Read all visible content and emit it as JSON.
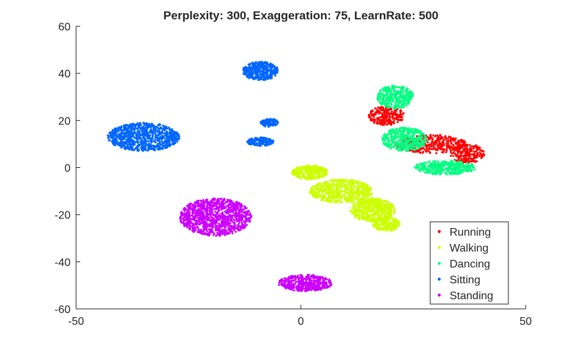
{
  "chart_data": {
    "type": "scatter",
    "title": "Perplexity: 300, Exaggeration: 75, LearnRate: 500",
    "xlabel": "",
    "ylabel": "",
    "xlim": [
      -50,
      50
    ],
    "ylim": [
      -60,
      60
    ],
    "xticks": [
      -50,
      0,
      50
    ],
    "yticks": [
      60,
      40,
      20,
      0,
      -20,
      -40,
      -60
    ],
    "grid": false,
    "legend_position": "bottom-right",
    "series": [
      {
        "name": "Running",
        "color": "#ff0000",
        "clusters": [
          {
            "cx": 19,
            "cy": 22,
            "rx": 4,
            "ry": 4,
            "n": 260
          },
          {
            "cx": 29,
            "cy": 10,
            "rx": 8,
            "ry": 4,
            "n": 380
          },
          {
            "cx": 37,
            "cy": 6,
            "rx": 4,
            "ry": 4,
            "n": 220
          }
        ]
      },
      {
        "name": "Walking",
        "color": "#ccff00",
        "clusters": [
          {
            "cx": 2,
            "cy": -2,
            "rx": 4,
            "ry": 3,
            "n": 300
          },
          {
            "cx": 9,
            "cy": -10,
            "rx": 7,
            "ry": 5,
            "n": 600
          },
          {
            "cx": 16,
            "cy": -18,
            "rx": 5,
            "ry": 5,
            "n": 500
          },
          {
            "cx": 19,
            "cy": -24,
            "rx": 3,
            "ry": 3,
            "n": 200
          }
        ]
      },
      {
        "name": "Dancing",
        "color": "#00ff80",
        "clusters": [
          {
            "cx": 21,
            "cy": 30,
            "rx": 4,
            "ry": 5,
            "n": 350
          },
          {
            "cx": 23,
            "cy": 12,
            "rx": 5,
            "ry": 5,
            "n": 420
          },
          {
            "cx": 32,
            "cy": 0,
            "rx": 7,
            "ry": 3,
            "n": 400
          }
        ]
      },
      {
        "name": "Sitting",
        "color": "#0066ff",
        "clusters": [
          {
            "cx": -35,
            "cy": 13,
            "rx": 8,
            "ry": 6,
            "n": 900
          },
          {
            "cx": -9,
            "cy": 41,
            "rx": 4,
            "ry": 4,
            "n": 400
          },
          {
            "cx": -7,
            "cy": 19,
            "rx": 2,
            "ry": 1.8,
            "n": 120
          },
          {
            "cx": -9,
            "cy": 11,
            "rx": 3,
            "ry": 1.8,
            "n": 160
          }
        ]
      },
      {
        "name": "Standing",
        "color": "#cc00ff",
        "clusters": [
          {
            "cx": -19,
            "cy": -21,
            "rx": 8,
            "ry": 8,
            "n": 1100
          },
          {
            "cx": 1,
            "cy": -49,
            "rx": 6,
            "ry": 3.5,
            "n": 450
          }
        ]
      }
    ]
  }
}
